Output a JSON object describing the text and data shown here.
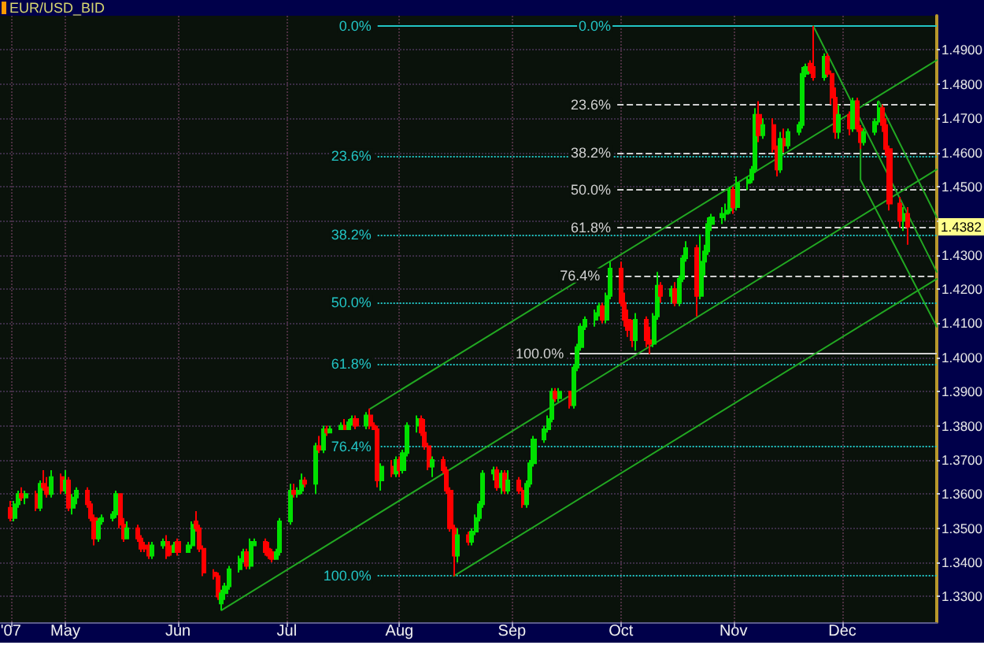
{
  "chart_data": {
    "type": "candlestick",
    "title": "EUR/USD_BID",
    "x": [
      "2007-04-16",
      "2007-04-17",
      "2007-04-18",
      "2007-04-19",
      "2007-04-20",
      "2007-04-23",
      "2007-04-24",
      "2007-04-25",
      "2007-04-26",
      "2007-04-27",
      "2007-04-30",
      "2007-05-01",
      "2007-05-02",
      "2007-05-03",
      "2007-05-04",
      "2007-05-07",
      "2007-05-08",
      "2007-05-09",
      "2007-05-10",
      "2007-05-11",
      "2007-05-14",
      "2007-05-15",
      "2007-05-16",
      "2007-05-17",
      "2007-05-18",
      "2007-05-21",
      "2007-05-22",
      "2007-05-23",
      "2007-05-24",
      "2007-05-25",
      "2007-05-28",
      "2007-05-29",
      "2007-05-30",
      "2007-05-31",
      "2007-06-01",
      "2007-06-04",
      "2007-06-05",
      "2007-06-06",
      "2007-06-07",
      "2007-06-08",
      "2007-06-11",
      "2007-06-12",
      "2007-06-13",
      "2007-06-14",
      "2007-06-15",
      "2007-06-18",
      "2007-06-19",
      "2007-06-20",
      "2007-06-21",
      "2007-06-22",
      "2007-06-25",
      "2007-06-26",
      "2007-06-27",
      "2007-06-28",
      "2007-06-29",
      "2007-07-02",
      "2007-07-03",
      "2007-07-04",
      "2007-07-05",
      "2007-07-06",
      "2007-07-09",
      "2007-07-10",
      "2007-07-11",
      "2007-07-12",
      "2007-07-13",
      "2007-07-16",
      "2007-07-17",
      "2007-07-18",
      "2007-07-19",
      "2007-07-20",
      "2007-07-23",
      "2007-07-24",
      "2007-07-25",
      "2007-07-26",
      "2007-07-27",
      "2007-07-30",
      "2007-07-31",
      "2007-08-01",
      "2007-08-02",
      "2007-08-03",
      "2007-08-06",
      "2007-08-07",
      "2007-08-08",
      "2007-08-09",
      "2007-08-10",
      "2007-08-13",
      "2007-08-14",
      "2007-08-15",
      "2007-08-16",
      "2007-08-17",
      "2007-08-20",
      "2007-08-21",
      "2007-08-22",
      "2007-08-23",
      "2007-08-24",
      "2007-08-27",
      "2007-08-28",
      "2007-08-29",
      "2007-08-30",
      "2007-08-31",
      "2007-09-03",
      "2007-09-04",
      "2007-09-05",
      "2007-09-06",
      "2007-09-07",
      "2007-09-10",
      "2007-09-11",
      "2007-09-12",
      "2007-09-13",
      "2007-09-14",
      "2007-09-17",
      "2007-09-18",
      "2007-09-19",
      "2007-09-20",
      "2007-09-21",
      "2007-09-24",
      "2007-09-25",
      "2007-09-26",
      "2007-09-27",
      "2007-09-28",
      "2007-10-01",
      "2007-10-02",
      "2007-10-03",
      "2007-10-04",
      "2007-10-05",
      "2007-10-08",
      "2007-10-09",
      "2007-10-10",
      "2007-10-11",
      "2007-10-12",
      "2007-10-15",
      "2007-10-16",
      "2007-10-17",
      "2007-10-18",
      "2007-10-19",
      "2007-10-22",
      "2007-10-23",
      "2007-10-24",
      "2007-10-25",
      "2007-10-26",
      "2007-10-29",
      "2007-10-30",
      "2007-10-31",
      "2007-11-01",
      "2007-11-02",
      "2007-11-05",
      "2007-11-06",
      "2007-11-07",
      "2007-11-08",
      "2007-11-09",
      "2007-11-12",
      "2007-11-13",
      "2007-11-14",
      "2007-11-15",
      "2007-11-16",
      "2007-11-19",
      "2007-11-20",
      "2007-11-21",
      "2007-11-22",
      "2007-11-23",
      "2007-11-26",
      "2007-11-27",
      "2007-11-28",
      "2007-11-29",
      "2007-11-30",
      "2007-12-03",
      "2007-12-04",
      "2007-12-05",
      "2007-12-06",
      "2007-12-07",
      "2007-12-10",
      "2007-12-11",
      "2007-12-12",
      "2007-12-13",
      "2007-12-14",
      "2007-12-17",
      "2007-12-18",
      "2007-12-19"
    ],
    "series": [
      {
        "ohlc": [
          [
            1.356,
            1.358,
            1.352,
            1.353
          ],
          [
            1.353,
            1.358,
            1.352,
            1.357
          ],
          [
            1.357,
            1.361,
            1.356,
            1.36
          ],
          [
            1.36,
            1.362,
            1.358,
            1.359
          ],
          [
            1.359,
            1.361,
            1.357,
            1.36
          ],
          [
            1.36,
            1.361,
            1.355,
            1.356
          ],
          [
            1.356,
            1.364,
            1.355,
            1.363
          ],
          [
            1.363,
            1.367,
            1.361,
            1.362
          ],
          [
            1.362,
            1.365,
            1.359,
            1.36
          ],
          [
            1.36,
            1.367,
            1.359,
            1.365
          ],
          [
            1.365,
            1.366,
            1.36,
            1.361
          ],
          [
            1.361,
            1.367,
            1.36,
            1.364
          ],
          [
            1.364,
            1.365,
            1.355,
            1.356
          ],
          [
            1.356,
            1.36,
            1.354,
            1.359
          ],
          [
            1.359,
            1.362,
            1.357,
            1.361
          ],
          [
            1.361,
            1.362,
            1.356,
            1.357
          ],
          [
            1.357,
            1.358,
            1.352,
            1.353
          ],
          [
            1.353,
            1.354,
            1.345,
            1.347
          ],
          [
            1.347,
            1.353,
            1.346,
            1.352
          ],
          [
            1.352,
            1.354,
            1.351,
            1.353
          ],
          [
            1.353,
            1.355,
            1.352,
            1.354
          ],
          [
            1.354,
            1.361,
            1.353,
            1.36
          ],
          [
            1.36,
            1.36,
            1.35,
            1.351
          ],
          [
            1.351,
            1.353,
            1.346,
            1.347
          ],
          [
            1.347,
            1.352,
            1.347,
            1.35
          ],
          [
            1.35,
            1.351,
            1.346,
            1.347
          ],
          [
            1.347,
            1.348,
            1.343,
            1.344
          ],
          [
            1.345,
            1.346,
            1.343,
            1.344
          ],
          [
            1.344,
            1.346,
            1.341,
            1.342
          ],
          [
            1.342,
            1.346,
            1.341,
            1.345
          ],
          [
            1.345,
            1.347,
            1.344,
            1.346
          ],
          [
            1.346,
            1.348,
            1.341,
            1.342
          ],
          [
            1.344,
            1.345,
            1.342,
            1.343
          ],
          [
            1.343,
            1.346,
            1.343,
            1.345
          ],
          [
            1.346,
            1.347,
            1.342,
            1.343
          ],
          [
            1.343,
            1.346,
            1.343,
            1.345
          ],
          [
            1.345,
            1.352,
            1.344,
            1.351
          ],
          [
            1.352,
            1.355,
            1.349,
            1.35
          ],
          [
            1.35,
            1.351,
            1.343,
            1.344
          ],
          [
            1.344,
            1.345,
            1.336,
            1.337
          ],
          [
            1.337,
            1.338,
            1.335,
            1.336
          ],
          [
            1.336,
            1.337,
            1.329,
            1.33
          ],
          [
            1.328,
            1.332,
            1.326,
            1.331
          ],
          [
            1.331,
            1.334,
            1.329,
            1.333
          ],
          [
            1.333,
            1.339,
            1.332,
            1.338
          ],
          [
            1.338,
            1.342,
            1.337,
            1.341
          ],
          [
            1.341,
            1.344,
            1.34,
            1.343
          ],
          [
            1.343,
            1.344,
            1.338,
            1.339
          ],
          [
            1.339,
            1.347,
            1.338,
            1.346
          ],
          [
            1.345,
            1.347,
            1.345,
            1.346
          ],
          [
            1.346,
            1.347,
            1.342,
            1.343
          ],
          [
            1.344,
            1.346,
            1.341,
            1.342
          ],
          [
            1.343,
            1.344,
            1.34,
            1.341
          ],
          [
            1.341,
            1.344,
            1.341,
            1.343
          ],
          [
            1.343,
            1.353,
            1.342,
            1.352
          ],
          [
            1.352,
            1.363,
            1.351,
            1.361
          ],
          [
            1.361,
            1.363,
            1.359,
            1.36
          ],
          [
            1.36,
            1.362,
            1.359,
            1.361
          ],
          [
            1.361,
            1.366,
            1.36,
            1.364
          ],
          [
            1.364,
            1.365,
            1.362,
            1.363
          ],
          [
            1.363,
            1.375,
            1.36,
            1.374
          ],
          [
            1.374,
            1.377,
            1.372,
            1.373
          ],
          [
            1.373,
            1.38,
            1.372,
            1.379
          ],
          [
            1.379,
            1.38,
            1.377,
            1.378
          ],
          [
            1.378,
            1.38,
            1.378,
            1.379
          ],
          [
            1.379,
            1.381,
            1.379,
            1.38
          ],
          [
            1.38,
            1.382,
            1.379,
            1.379
          ],
          [
            1.379,
            1.382,
            1.379,
            1.381
          ],
          [
            1.381,
            1.383,
            1.38,
            1.382
          ],
          [
            1.382,
            1.383,
            1.379,
            1.38
          ],
          [
            1.38,
            1.384,
            1.379,
            1.383
          ],
          [
            1.383,
            1.385,
            1.379,
            1.38
          ],
          [
            1.38,
            1.381,
            1.379,
            1.379
          ],
          [
            1.379,
            1.38,
            1.362,
            1.364
          ],
          [
            1.364,
            1.369,
            1.361,
            1.368
          ],
          [
            1.368,
            1.37,
            1.365,
            1.366
          ],
          [
            1.366,
            1.371,
            1.365,
            1.37
          ],
          [
            1.37,
            1.371,
            1.365,
            1.367
          ],
          [
            1.367,
            1.373,
            1.366,
            1.372
          ],
          [
            1.372,
            1.381,
            1.371,
            1.38
          ],
          [
            1.38,
            1.383,
            1.378,
            1.382
          ],
          [
            1.382,
            1.383,
            1.377,
            1.378
          ],
          [
            1.378,
            1.382,
            1.373,
            1.374
          ],
          [
            1.374,
            1.375,
            1.367,
            1.368
          ],
          [
            1.368,
            1.371,
            1.365,
            1.37
          ],
          [
            1.37,
            1.371,
            1.366,
            1.367
          ],
          [
            1.367,
            1.368,
            1.36,
            1.361
          ],
          [
            1.361,
            1.362,
            1.349,
            1.35
          ],
          [
            1.35,
            1.351,
            1.336,
            1.342
          ],
          [
            1.342,
            1.35,
            1.34,
            1.348
          ],
          [
            1.348,
            1.349,
            1.345,
            1.346
          ],
          [
            1.346,
            1.35,
            1.345,
            1.349
          ],
          [
            1.349,
            1.354,
            1.348,
            1.353
          ],
          [
            1.353,
            1.358,
            1.352,
            1.357
          ],
          [
            1.357,
            1.367,
            1.356,
            1.366
          ],
          [
            1.366,
            1.368,
            1.364,
            1.367
          ],
          [
            1.367,
            1.368,
            1.361,
            1.362
          ],
          [
            1.362,
            1.367,
            1.36,
            1.366
          ],
          [
            1.366,
            1.367,
            1.36,
            1.361
          ],
          [
            1.361,
            1.367,
            1.36,
            1.364
          ],
          [
            1.364,
            1.365,
            1.36,
            1.361
          ],
          [
            1.361,
            1.362,
            1.356,
            1.357
          ],
          [
            1.357,
            1.364,
            1.356,
            1.363
          ],
          [
            1.363,
            1.37,
            1.362,
            1.369
          ],
          [
            1.369,
            1.377,
            1.368,
            1.376
          ],
          [
            1.376,
            1.38,
            1.375,
            1.379
          ],
          [
            1.379,
            1.383,
            1.378,
            1.382
          ],
          [
            1.382,
            1.391,
            1.381,
            1.39
          ],
          [
            1.39,
            1.391,
            1.387,
            1.388
          ],
          [
            1.388,
            1.391,
            1.387,
            1.39
          ],
          [
            1.39,
            1.39,
            1.385,
            1.386
          ],
          [
            1.386,
            1.398,
            1.385,
            1.397
          ],
          [
            1.397,
            1.404,
            1.396,
            1.403
          ],
          [
            1.403,
            1.41,
            1.402,
            1.409
          ],
          [
            1.409,
            1.412,
            1.408,
            1.411
          ],
          [
            1.411,
            1.414,
            1.409,
            1.413
          ],
          [
            1.413,
            1.416,
            1.412,
            1.415
          ],
          [
            1.415,
            1.416,
            1.41,
            1.411
          ],
          [
            1.411,
            1.419,
            1.41,
            1.418
          ],
          [
            1.418,
            1.428,
            1.417,
            1.426
          ],
          [
            1.426,
            1.428,
            1.415,
            1.416
          ],
          [
            1.416,
            1.419,
            1.409,
            1.411
          ],
          [
            1.411,
            1.414,
            1.406,
            1.408
          ],
          [
            1.408,
            1.411,
            1.403,
            1.405
          ],
          [
            1.405,
            1.413,
            1.402,
            1.411
          ],
          [
            1.411,
            1.412,
            1.403,
            1.405
          ],
          [
            1.405,
            1.409,
            1.401,
            1.404
          ],
          [
            1.404,
            1.413,
            1.403,
            1.412
          ],
          [
            1.412,
            1.425,
            1.411,
            1.421
          ],
          [
            1.421,
            1.422,
            1.416,
            1.418
          ],
          [
            1.418,
            1.421,
            1.416,
            1.42
          ],
          [
            1.42,
            1.422,
            1.415,
            1.416
          ],
          [
            1.416,
            1.424,
            1.415,
            1.423
          ],
          [
            1.423,
            1.43,
            1.422,
            1.429
          ],
          [
            1.429,
            1.434,
            1.428,
            1.432
          ],
          [
            1.432,
            1.433,
            1.412,
            1.418
          ],
          [
            1.418,
            1.436,
            1.417,
            1.428
          ],
          [
            1.428,
            1.433,
            1.424,
            1.431
          ],
          [
            1.431,
            1.441,
            1.43,
            1.439
          ],
          [
            1.439,
            1.442,
            1.437,
            1.441
          ],
          [
            1.441,
            1.444,
            1.439,
            1.442
          ],
          [
            1.442,
            1.445,
            1.44,
            1.443
          ],
          [
            1.443,
            1.45,
            1.442,
            1.449
          ],
          [
            1.449,
            1.45,
            1.442,
            1.444
          ],
          [
            1.444,
            1.453,
            1.443,
            1.451
          ],
          [
            1.451,
            1.453,
            1.449,
            1.452
          ],
          [
            1.452,
            1.456,
            1.451,
            1.455
          ],
          [
            1.455,
            1.473,
            1.454,
            1.471
          ],
          [
            1.471,
            1.475,
            1.463,
            1.465
          ],
          [
            1.465,
            1.47,
            1.464,
            1.468
          ],
          [
            1.468,
            1.47,
            1.46,
            1.461
          ],
          [
            1.461,
            1.462,
            1.453,
            1.455
          ],
          [
            1.455,
            1.466,
            1.454,
            1.464
          ],
          [
            1.464,
            1.467,
            1.46,
            1.462
          ],
          [
            1.462,
            1.467,
            1.461,
            1.466
          ],
          [
            1.466,
            1.469,
            1.465,
            1.468
          ],
          [
            1.468,
            1.485,
            1.467,
            1.483
          ],
          [
            1.483,
            1.486,
            1.482,
            1.485
          ],
          [
            1.486,
            1.487,
            1.483,
            1.484
          ],
          [
            1.485,
            1.497,
            1.481,
            1.482
          ],
          [
            1.482,
            1.489,
            1.481,
            1.488
          ],
          [
            1.488,
            1.489,
            1.482,
            1.483
          ],
          [
            1.483,
            1.484,
            1.474,
            1.476
          ],
          [
            1.476,
            1.479,
            1.464,
            1.466
          ],
          [
            1.466,
            1.474,
            1.464,
            1.471
          ],
          [
            1.471,
            1.472,
            1.465,
            1.467
          ],
          [
            1.467,
            1.476,
            1.466,
            1.475
          ],
          [
            1.475,
            1.476,
            1.466,
            1.467
          ],
          [
            1.467,
            1.468,
            1.461,
            1.463
          ],
          [
            1.463,
            1.467,
            1.462,
            1.466
          ],
          [
            1.466,
            1.47,
            1.465,
            1.469
          ],
          [
            1.469,
            1.475,
            1.468,
            1.473
          ],
          [
            1.473,
            1.474,
            1.466,
            1.468
          ],
          [
            1.468,
            1.47,
            1.459,
            1.461
          ],
          [
            1.461,
            1.462,
            1.443,
            1.445
          ],
          [
            1.445,
            1.447,
            1.438,
            1.44
          ],
          [
            1.44,
            1.444,
            1.437,
            1.442
          ],
          [
            1.442,
            1.444,
            1.433,
            1.4382
          ]
        ],
        "colors": [
          "#ff0000",
          "#00e000",
          "#00e000",
          "#ff0000",
          "#00e000",
          "#ff0000",
          "#00e000",
          "#ff0000",
          "#ff0000",
          "#00e000",
          "#ff0000",
          "#00e000",
          "#ff0000",
          "#00e000",
          "#00e000",
          "#ff0000",
          "#ff0000",
          "#ff0000",
          "#00e000",
          "#00e000",
          "#00e000",
          "#00e000",
          "#ff0000",
          "#ff0000",
          "#00e000",
          "#ff0000",
          "#ff0000",
          "#ff0000",
          "#ff0000",
          "#00e000",
          "#00e000",
          "#ff0000",
          "#ff0000",
          "#00e000",
          "#ff0000",
          "#00e000",
          "#00e000",
          "#ff0000",
          "#ff0000",
          "#ff0000",
          "#ff0000",
          "#ff0000",
          "#00e000",
          "#00e000",
          "#00e000",
          "#00e000",
          "#00e000",
          "#ff0000",
          "#00e000",
          "#00e000",
          "#ff0000",
          "#ff0000",
          "#ff0000",
          "#00e000",
          "#00e000",
          "#00e000",
          "#ff0000",
          "#00e000",
          "#00e000",
          "#ff0000",
          "#00e000",
          "#ff0000",
          "#00e000",
          "#ff0000",
          "#00e000",
          "#00e000",
          "#ff0000",
          "#00e000",
          "#00e000",
          "#ff0000",
          "#00e000",
          "#ff0000",
          "#ff0000",
          "#ff0000",
          "#00e000",
          "#ff0000",
          "#00e000",
          "#ff0000",
          "#00e000",
          "#00e000",
          "#00e000",
          "#ff0000",
          "#ff0000",
          "#ff0000",
          "#00e000",
          "#ff0000",
          "#ff0000",
          "#ff0000",
          "#ff0000",
          "#00e000",
          "#ff0000",
          "#00e000",
          "#00e000",
          "#00e000",
          "#00e000",
          "#00e000",
          "#ff0000",
          "#00e000",
          "#ff0000",
          "#00e000",
          "#ff0000",
          "#ff0000",
          "#00e000",
          "#00e000",
          "#00e000",
          "#00e000",
          "#00e000",
          "#00e000",
          "#ff0000",
          "#00e000",
          "#ff0000",
          "#00e000",
          "#00e000",
          "#00e000",
          "#00e000",
          "#00e000",
          "#00e000",
          "#ff0000",
          "#00e000",
          "#00e000",
          "#ff0000",
          "#ff0000",
          "#ff0000",
          "#ff0000",
          "#00e000",
          "#ff0000",
          "#ff0000",
          "#00e000",
          "#00e000",
          "#ff0000",
          "#00e000",
          "#ff0000",
          "#00e000",
          "#00e000",
          "#00e000",
          "#ff0000",
          "#00e000",
          "#00e000",
          "#00e000",
          "#00e000",
          "#00e000",
          "#00e000",
          "#00e000",
          "#ff0000",
          "#00e000",
          "#00e000",
          "#00e000",
          "#00e000",
          "#ff0000",
          "#00e000",
          "#ff0000",
          "#ff0000",
          "#00e000",
          "#ff0000",
          "#00e000",
          "#00e000",
          "#00e000",
          "#00e000",
          "#ff0000",
          "#ff0000",
          "#00e000",
          "#ff0000",
          "#ff0000",
          "#ff0000",
          "#00e000",
          "#ff0000",
          "#00e000",
          "#ff0000",
          "#ff0000",
          "#00e000",
          "#00e000",
          "#00e000",
          "#ff0000",
          "#ff0000",
          "#ff0000",
          "#ff0000",
          "#00e000",
          "#ff0000"
        ]
      },
      {
        "type": "line",
        "color": "#22a822",
        "x": [
          "2007-07-24",
          "2007-12-27"
        ],
        "values": [
          1.385,
          1.487
        ]
      },
      {
        "type": "line",
        "color": "#22a822",
        "x": [
          "2007-06-13",
          "2007-12-27"
        ],
        "values": [
          1.326,
          1.455
        ]
      },
      {
        "type": "line",
        "color": "#22a822",
        "x": [
          "2007-08-16",
          "2007-12-27"
        ],
        "values": [
          1.336,
          1.423
        ]
      },
      {
        "type": "line",
        "color": "#22a822",
        "x": [
          "2007-11-23",
          "2007-12-27"
        ],
        "values": [
          1.497,
          1.425
        ]
      },
      {
        "type": "line",
        "color": "#22a822",
        "x": [
          "2007-12-11",
          "2007-12-27"
        ],
        "values": [
          1.475,
          1.441
        ]
      },
      {
        "type": "line",
        "color": "#22a822",
        "x": [
          "2007-12-06",
          "2007-12-06",
          "2007-12-27"
        ],
        "values": [
          1.465,
          1.452,
          1.409
        ]
      }
    ],
    "xlim": [
      "2007-04-13",
      "2007-12-27"
    ],
    "xticks": [
      {
        "value": "2007-04-16",
        "label": "'07"
      },
      {
        "value": "2007-05-01",
        "label": "May"
      },
      {
        "value": "2007-06-01",
        "label": "Jun"
      },
      {
        "value": "2007-07-01",
        "label": "Jul"
      },
      {
        "value": "2007-08-01",
        "label": "Aug"
      },
      {
        "value": "2007-09-01",
        "label": "Sep"
      },
      {
        "value": "2007-10-01",
        "label": "Oct"
      },
      {
        "value": "2007-11-01",
        "label": "Nov"
      },
      {
        "value": "2007-12-01",
        "label": "Dec"
      }
    ],
    "ylim": [
      1.3225,
      1.5
    ],
    "yticks": [
      {
        "value": 1.33,
        "label": "1.3300"
      },
      {
        "value": 1.34,
        "label": "1.3400"
      },
      {
        "value": 1.35,
        "label": "1.3500"
      },
      {
        "value": 1.36,
        "label": "1.3600"
      },
      {
        "value": 1.37,
        "label": "1.3700"
      },
      {
        "value": 1.38,
        "label": "1.3800"
      },
      {
        "value": 1.39,
        "label": "1.3900"
      },
      {
        "value": 1.4,
        "label": "1.4000"
      },
      {
        "value": 1.41,
        "label": "1.4100"
      },
      {
        "value": 1.42,
        "label": "1.4200"
      },
      {
        "value": 1.43,
        "label": "1.4300"
      },
      {
        "value": 1.44,
        "label": null
      },
      {
        "value": 1.45,
        "label": "1.4500"
      },
      {
        "value": 1.46,
        "label": "1.4600"
      },
      {
        "value": 1.47,
        "label": "1.4700"
      },
      {
        "value": 1.48,
        "label": "1.4800"
      },
      {
        "value": 1.49,
        "label": "1.4900"
      }
    ],
    "ref_lines": [
      {
        "axis": "y",
        "value": 1.497,
        "color": "#22c4c4",
        "line_style": "solid"
      },
      {
        "axis": "y",
        "value": 1.474,
        "color": "#d0d0d0",
        "line_style": "dashed"
      },
      {
        "axis": "y",
        "value": 1.46,
        "color": "#d0d0d0",
        "line_style": "dashed"
      },
      {
        "axis": "y",
        "value": 1.449,
        "color": "#d0d0d0",
        "line_style": "dashed"
      },
      {
        "axis": "y",
        "value": 1.438,
        "color": "#d0d0d0",
        "line_style": "dashed"
      },
      {
        "axis": "y",
        "value": 1.424,
        "color": "#d0d0d0",
        "line_style": "dashed"
      },
      {
        "axis": "y",
        "value": 1.401,
        "color": "#d0d0d0",
        "line_style": "solid"
      },
      {
        "axis": "y",
        "value": 1.459,
        "color": "#22c4c4",
        "line_style": "dotted"
      },
      {
        "axis": "y",
        "value": 1.436,
        "color": "#22c4c4",
        "line_style": "dotted"
      },
      {
        "axis": "y",
        "value": 1.416,
        "color": "#22c4c4",
        "line_style": "dotted"
      },
      {
        "axis": "y",
        "value": 1.398,
        "color": "#22c4c4",
        "line_style": "dotted"
      },
      {
        "axis": "y",
        "value": 1.374,
        "color": "#22c4c4",
        "line_style": "dotted"
      },
      {
        "axis": "y",
        "value": 1.336,
        "color": "#22c4c4",
        "line_style": "dotted"
      }
    ],
    "annotations": [
      {
        "text": "0.0%",
        "x": "2007-07-26",
        "y": 1.497
      },
      {
        "text": "0.0%",
        "x": "2007-09-30",
        "y": 1.497
      },
      {
        "text": "23.6%",
        "x": "2007-09-30",
        "y": 1.474
      },
      {
        "text": "38.2%",
        "x": "2007-09-30",
        "y": 1.46
      },
      {
        "text": "50.0%",
        "x": "2007-09-30",
        "y": 1.449
      },
      {
        "text": "61.8%",
        "x": "2007-09-30",
        "y": 1.438
      },
      {
        "text": "76.4%",
        "x": "2007-09-27",
        "y": 1.424
      },
      {
        "text": "100.0%",
        "x": "2007-09-17",
        "y": 1.401
      },
      {
        "text": "23.6%",
        "x": "2007-07-26",
        "y": 1.459
      },
      {
        "text": "38.2%",
        "x": "2007-07-26",
        "y": 1.436
      },
      {
        "text": "50.0%",
        "x": "2007-07-26",
        "y": 1.416
      },
      {
        "text": "61.8%",
        "x": "2007-07-26",
        "y": 1.398
      },
      {
        "text": "76.4%",
        "x": "2007-07-26",
        "y": 1.374
      },
      {
        "text": "100.0%",
        "x": "2007-07-26",
        "y": 1.336
      },
      {
        "text": "1.4382",
        "y": 1.4382
      }
    ],
    "grid": true
  }
}
